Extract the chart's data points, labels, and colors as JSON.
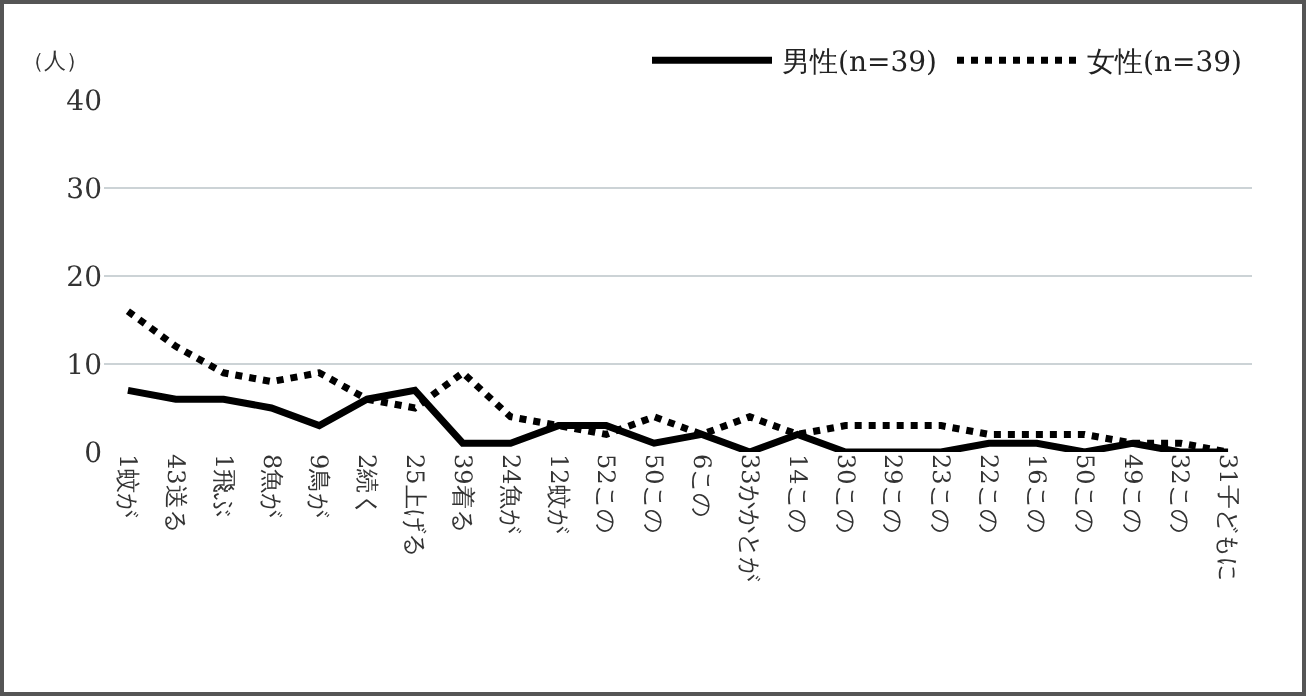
{
  "chart_data": {
    "type": "line",
    "ylabel": "（人）",
    "categories": [
      "1蚊が",
      "43送る",
      "1飛ぶ",
      "8魚が",
      "9鳥が",
      "2続く",
      "25上げる",
      "39着る",
      "24魚が",
      "12蚊が",
      "52この",
      "50この",
      "6この",
      "33かかとが",
      "14この",
      "30この",
      "29この",
      "23この",
      "22この",
      "16この",
      "50この",
      "49この",
      "32この",
      "31子どもに"
    ],
    "series": [
      {
        "name": "男性(n=39)",
        "color": "#000000",
        "line_style": "solid",
        "values": [
          7,
          6,
          6,
          5,
          3,
          6,
          7,
          1,
          1,
          3,
          3,
          1,
          2,
          0,
          2,
          0,
          0,
          0,
          1,
          1,
          0,
          1,
          0,
          0
        ]
      },
      {
        "name": "女性(n=39)",
        "color": "#000000",
        "line_style": "dotted",
        "values": [
          16,
          12,
          9,
          8,
          9,
          6,
          5,
          9,
          4,
          3,
          2,
          4,
          2,
          4,
          2,
          3,
          3,
          3,
          2,
          2,
          2,
          1,
          1,
          0
        ]
      }
    ],
    "ylim": [
      0,
      40
    ],
    "yticks": [
      0,
      10,
      20,
      30,
      40
    ],
    "grid": "y",
    "legend": "top right",
    "marker": "none"
  }
}
